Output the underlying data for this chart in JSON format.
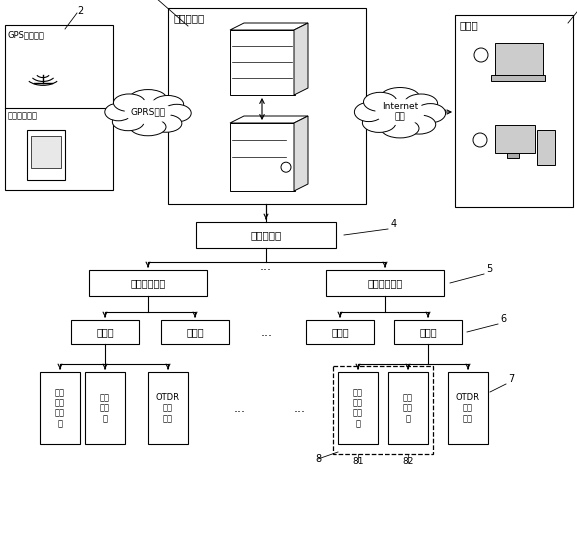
{
  "labels": {
    "service_center": "服务中心站",
    "gps_module": "GPS信号模块",
    "mobile_device": "移动手持设备",
    "gprs": "GPRS网络",
    "internet": "Internet\n网络",
    "client": "客户端",
    "main_center": "总监测中心",
    "area_center": "区域监测中心",
    "monitor_stn": "监测站",
    "opt_power": "光功\n率监\n测模\n块",
    "opt_switch": "光开\n关模\n块",
    "otdr": "OTDR\n测试\n模块",
    "dots": "..."
  }
}
